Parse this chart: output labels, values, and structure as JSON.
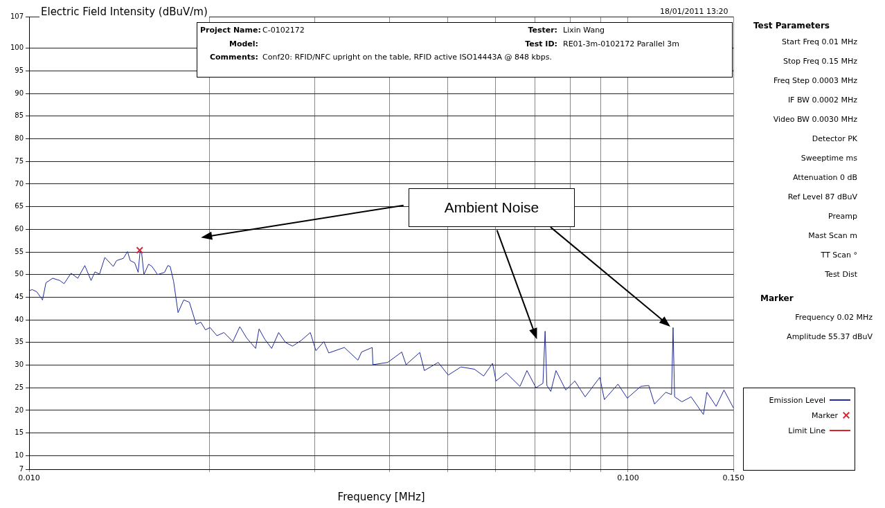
{
  "chart_data": {
    "type": "line",
    "ylabel": "Electric Field Intensity (dBuV/m)",
    "xlabel": "Frequency [MHz]",
    "log": "x",
    "xlim": [
      0.01,
      0.15
    ],
    "xticks": [
      {
        "value": 0.01,
        "label": "0.010"
      },
      {
        "value": 0.02,
        "label": null
      },
      {
        "value": 0.03,
        "label": null
      },
      {
        "value": 0.04,
        "label": null
      },
      {
        "value": 0.05,
        "label": null
      },
      {
        "value": 0.06,
        "label": null
      },
      {
        "value": 0.07,
        "label": null
      },
      {
        "value": 0.08,
        "label": null
      },
      {
        "value": 0.09,
        "label": null
      },
      {
        "value": 0.1,
        "label": "0.100"
      },
      {
        "value": 0.15,
        "label": "0.150"
      }
    ],
    "ylim": [
      7,
      107
    ],
    "yticks": [
      7,
      10,
      15,
      20,
      25,
      30,
      35,
      40,
      45,
      50,
      55,
      60,
      65,
      70,
      75,
      80,
      85,
      90,
      95,
      100,
      107
    ],
    "grid": true,
    "legend": "bottom right",
    "series": [
      {
        "name": "Emission Level",
        "color": "#1f2a9c",
        "marker": "none",
        "x": [
          0.01,
          0.01012,
          0.0103,
          0.01053,
          0.01067,
          0.01095,
          0.01125,
          0.01144,
          0.01175,
          0.01206,
          0.01239,
          0.01269,
          0.01288,
          0.01311,
          0.01338,
          0.01382,
          0.014,
          0.01437,
          0.0146,
          0.01475,
          0.01501,
          0.01521,
          0.01532,
          0.01542,
          0.01555,
          0.01583,
          0.01604,
          0.01639,
          0.01683,
          0.01705,
          0.0172,
          0.01743,
          0.01773,
          0.01812,
          0.01852,
          0.01901,
          0.01935,
          0.0197,
          0.02005,
          0.02059,
          0.02115,
          0.02189,
          0.02248,
          0.02308,
          0.02389,
          0.02421,
          0.02475,
          0.02541,
          0.0261,
          0.02681,
          0.02753,
          0.02849,
          0.02948,
          0.03012,
          0.03106,
          0.03164,
          0.0336,
          0.0354,
          0.0359,
          0.0374,
          0.0375,
          0.0397,
          0.0419,
          0.0426,
          0.0449,
          0.0457,
          0.0482,
          0.0501,
          0.0526,
          0.0554,
          0.0574,
          0.0594,
          0.0602,
          0.0626,
          0.066,
          0.0678,
          0.0702,
          0.0721,
          0.0727,
          0.0732,
          0.0743,
          0.0758,
          0.0787,
          0.0815,
          0.0848,
          0.0897,
          0.0913,
          0.0962,
          0.0997,
          0.105,
          0.1083,
          0.1107,
          0.1156,
          0.1182,
          0.1189,
          0.1196,
          0.123,
          0.1274,
          0.1336,
          0.1354,
          0.1403,
          0.1446,
          0.15
        ],
        "values": [
          46.4,
          46.7,
          46.2,
          44.4,
          48.2,
          49.2,
          48.7,
          48.0,
          50.3,
          49.2,
          52.0,
          48.7,
          50.6,
          50.1,
          53.8,
          51.8,
          53.1,
          53.6,
          55.1,
          53.1,
          52.6,
          50.5,
          55.1,
          54.6,
          50.0,
          52.3,
          51.8,
          50.0,
          50.5,
          52.0,
          51.8,
          48.5,
          41.6,
          44.4,
          43.9,
          39.0,
          39.5,
          37.8,
          38.3,
          36.5,
          37.2,
          35.2,
          38.5,
          36.0,
          33.7,
          38.0,
          35.7,
          33.7,
          37.2,
          35.0,
          34.2,
          35.5,
          37.2,
          33.2,
          35.2,
          32.7,
          33.9,
          31.1,
          32.9,
          33.9,
          30.1,
          30.6,
          32.9,
          30.1,
          32.8,
          28.8,
          30.6,
          27.8,
          29.6,
          29.1,
          27.6,
          30.4,
          26.5,
          28.3,
          25.3,
          28.8,
          25.0,
          26.0,
          37.5,
          25.5,
          24.2,
          28.8,
          24.5,
          26.5,
          23.0,
          27.3,
          22.4,
          25.8,
          22.7,
          25.3,
          25.5,
          21.4,
          24.0,
          23.5,
          38.3,
          23.0,
          21.9,
          23.0,
          19.1,
          24.0,
          20.9,
          24.5,
          20.5
        ]
      },
      {
        "name": "Marker",
        "type": "scatter",
        "color": "#d42a3a",
        "marker": "cross",
        "x": [
          0.0153
        ],
        "values": [
          55.4
        ]
      },
      {
        "name": "Limit Line",
        "type": "line",
        "color": "#e0202a",
        "marker": "none"
      }
    ],
    "annotations": [
      "18/01/2011 13:20",
      "Project Name:",
      "C-0102172",
      "Tester:",
      "Lixin Wang",
      "Model:",
      "Test ID:",
      "RE01-3m-0102172 Parallel 3m",
      "Comments:",
      "Conf20: RFID/NFC upright on the table, RFID active ISO14443A @ 848 kbps.",
      "Ambient Noise",
      "Test Parameters",
      "Start Freq 0.01 MHz",
      "Stop Freq 0.15 MHz",
      "Freq Step 0.0003 MHz",
      "IF BW 0.0002 MHz",
      "Video BW 0.0030 MHz",
      "Detector PK",
      "Sweeptime ms",
      "Attenuation 0 dB",
      "Ref Level 87 dBuV",
      "Preamp",
      "Mast Scan m",
      "TT Scan °",
      "Test Dist",
      "Marker",
      "Frequency 0.02 MHz",
      "Amplitude 55.37 dBuV"
    ]
  }
}
